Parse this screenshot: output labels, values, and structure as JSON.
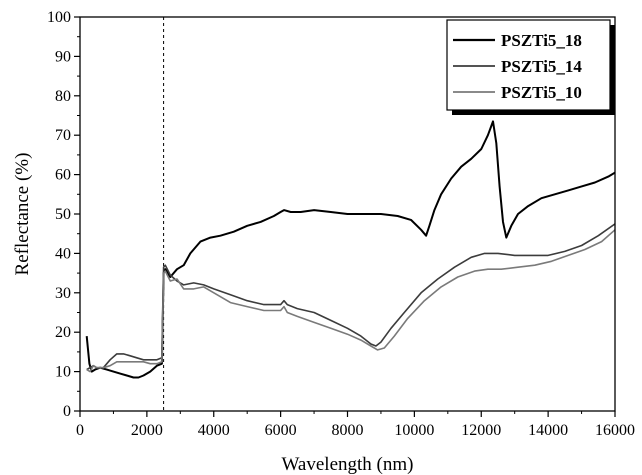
{
  "chart_data": {
    "type": "line",
    "xlabel": "Wavelength (nm)",
    "ylabel": "Reflectance (%)",
    "xlim": [
      0,
      16000
    ],
    "ylim": [
      0,
      100
    ],
    "x_ticks": [
      0,
      2000,
      4000,
      6000,
      8000,
      10000,
      12000,
      14000,
      16000
    ],
    "y_ticks": [
      0,
      10,
      20,
      30,
      40,
      50,
      60,
      70,
      80,
      90,
      100
    ],
    "x_tick_labels": [
      "0",
      "2000",
      "4000",
      "6000",
      "8000",
      "10000",
      "12000",
      "14000",
      "16000"
    ],
    "y_tick_labels": [
      "0",
      "10",
      "20",
      "30",
      "40",
      "50",
      "60",
      "70",
      "80",
      "90",
      "100"
    ],
    "grid": false,
    "legend_position": "top-right",
    "reference_line_x": 2500,
    "series": [
      {
        "name": "PSZTi5_18",
        "color": "#000000",
        "x": [
          200,
          280,
          350,
          450,
          600,
          800,
          1000,
          1200,
          1400,
          1600,
          1750,
          1900,
          2100,
          2300,
          2450,
          2500,
          2550,
          2700,
          2900,
          3100,
          3300,
          3600,
          3900,
          4200,
          4600,
          5000,
          5400,
          5800,
          6000,
          6100,
          6300,
          6600,
          7000,
          7500,
          8000,
          8500,
          9000,
          9500,
          9900,
          10200,
          10350,
          10450,
          10600,
          10800,
          11100,
          11400,
          11700,
          12000,
          12200,
          12350,
          12450,
          12550,
          12650,
          12750,
          12900,
          13100,
          13400,
          13800,
          14200,
          14600,
          15000,
          15400,
          15800,
          16000
        ],
        "y": [
          19,
          12,
          10,
          10.5,
          11,
          10.5,
          10,
          9.5,
          9,
          8.5,
          8.5,
          9,
          10,
          11.5,
          12,
          35,
          36,
          34,
          36,
          37,
          40,
          43,
          44,
          44.5,
          45.5,
          47,
          48,
          49.5,
          50.5,
          51,
          50.5,
          50.5,
          51,
          50.5,
          50,
          50,
          50,
          49.5,
          48.5,
          46,
          44.5,
          47,
          51,
          55,
          59,
          62,
          64,
          66.5,
          70,
          73.5,
          68,
          57,
          48,
          44,
          47,
          50,
          52,
          54,
          55,
          56,
          57,
          58,
          59.5,
          60.5
        ]
      },
      {
        "name": "PSZTi5_14",
        "color": "#3c3c3c",
        "x": [
          200,
          300,
          400,
          500,
          700,
          900,
          1100,
          1300,
          1500,
          1700,
          1900,
          2100,
          2300,
          2450,
          2500,
          2550,
          2700,
          2900,
          3100,
          3400,
          3700,
          4000,
          4500,
          5000,
          5500,
          6000,
          6100,
          6200,
          6500,
          7000,
          7500,
          8000,
          8400,
          8700,
          8850,
          9000,
          9300,
          9700,
          10200,
          10700,
          11200,
          11700,
          12100,
          12500,
          13000,
          13500,
          14000,
          14500,
          15000,
          15500,
          16000
        ],
        "y": [
          10.5,
          11,
          11.5,
          11,
          11,
          13,
          14.5,
          14.5,
          14,
          13.5,
          13,
          13,
          13,
          13.5,
          36.5,
          37,
          34.5,
          33,
          32,
          32.5,
          32,
          31,
          29.5,
          28,
          27,
          27,
          28,
          27,
          26,
          25,
          23,
          21,
          19,
          17,
          16.5,
          17.5,
          21,
          25,
          30,
          33.5,
          36.5,
          39,
          40,
          40,
          39.5,
          39.5,
          39.5,
          40.5,
          42,
          44.5,
          47.5
        ]
      },
      {
        "name": "PSZTi5_10",
        "color": "#7a7a7a",
        "x": [
          200,
          300,
          400,
          500,
          700,
          900,
          1100,
          1300,
          1500,
          1700,
          1900,
          2100,
          2300,
          2450,
          2500,
          2550,
          2700,
          2900,
          3100,
          3400,
          3700,
          4000,
          4500,
          5000,
          5500,
          6000,
          6100,
          6200,
          6500,
          7000,
          7500,
          8000,
          8400,
          8700,
          8900,
          9100,
          9400,
          9800,
          10300,
          10800,
          11300,
          11800,
          12200,
          12600,
          13100,
          13600,
          14100,
          14600,
          15100,
          15600,
          16000
        ],
        "y": [
          10.5,
          10,
          11.5,
          11,
          11,
          11.5,
          12.5,
          12.5,
          12.5,
          12.5,
          12.5,
          12,
          12,
          12.5,
          35,
          35.5,
          33,
          33.5,
          31,
          31,
          31.5,
          30,
          27.5,
          26.5,
          25.5,
          25.5,
          26.5,
          25,
          24,
          22.5,
          21,
          19.5,
          18,
          16.5,
          15.5,
          16,
          19,
          23.5,
          28,
          31.5,
          34,
          35.5,
          36,
          36,
          36.5,
          37,
          38,
          39.5,
          41,
          43,
          46
        ]
      }
    ]
  }
}
